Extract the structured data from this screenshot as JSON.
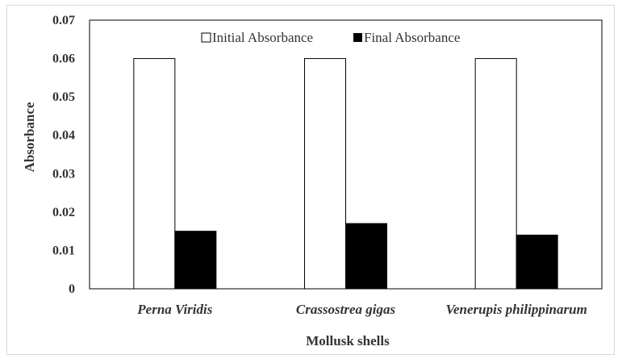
{
  "chart_data": {
    "type": "bar",
    "title": "",
    "xlabel": "Mollusk shells",
    "ylabel": "Absorbance",
    "categories": [
      "Perna Viridis",
      "Crassostrea gigas",
      "Venerupis philippinarum"
    ],
    "series": [
      {
        "name": "Initial Absorbance",
        "values": [
          0.06,
          0.06,
          0.06
        ],
        "color": "#ffffff"
      },
      {
        "name": "Final Absorbance",
        "values": [
          0.015,
          0.017,
          0.014
        ],
        "color": "#000000"
      }
    ],
    "ylim": [
      0,
      0.07
    ],
    "yticks": [
      "0",
      "0.01",
      "0.02",
      "0.03",
      "0.04",
      "0.05",
      "0.06",
      "0.07"
    ],
    "legend_position": "top-center",
    "grid": false
  }
}
